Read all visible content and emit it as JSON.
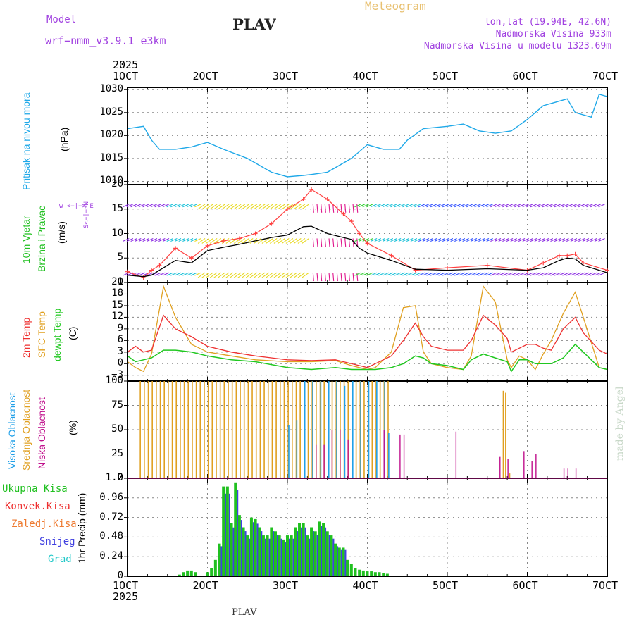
{
  "header": {
    "model_label": "Model",
    "model_name": "wrf−nmm_v3.9.1  e3km",
    "station": "PLAV",
    "product": "Meteogram",
    "lonlat": "lon,lat (19.94E, 42.6N)",
    "elevation": "Nadmorska Visina 933m",
    "model_elevation": "Nadmorska Visina u modelu 1323.69m",
    "watermark": "made by Angel",
    "footer_station": "PLAV"
  },
  "colors": {
    "pressure": "#1ea8e8",
    "wind_violet": "#8a2be2",
    "wind_purple": "#a020c0",
    "wind_blue": "#3050ff",
    "wind_cyan": "#18c0d8",
    "wind_green": "#30d030",
    "wind_yellow": "#e8d820",
    "wind_magenta": "#e0148c",
    "gust": "#ff4040",
    "speed": "#000000",
    "t2m": "#ee3030",
    "sfc": "#e0a020",
    "dewpt": "#20c820",
    "cloud_high": "#20a0e8",
    "cloud_mid": "#e0a020",
    "cloud_low": "#c0108c",
    "precip_total": "#20c020",
    "precip_conv": "#ee3030",
    "precip_freezing": "#ee7a30",
    "precip_snow": "#4040e0",
    "precip_hail": "#20c8c8"
  },
  "chart_data": [
    {
      "type": "line",
      "id": "pressure",
      "title": "Pritisak na nivou mora",
      "ylabel": "(hPa)",
      "ylim": [
        1009.3,
        1030.5
      ],
      "yticks": [
        "1010",
        "1015",
        "1020",
        "1025",
        "1030"
      ],
      "x_range_days": [
        1,
        7
      ],
      "x": [
        1.0,
        1.2,
        1.3,
        1.4,
        1.5,
        1.6,
        1.8,
        2.0,
        2.2,
        2.5,
        2.8,
        3.0,
        3.2,
        3.3,
        3.5,
        3.8,
        4.0,
        4.2,
        4.4,
        4.5,
        4.7,
        5.0,
        5.2,
        5.4,
        5.6,
        5.8,
        6.0,
        6.2,
        6.3,
        6.5,
        6.6,
        6.8,
        6.9,
        7.0
      ],
      "series": [
        {
          "name": "MSLP",
          "values": [
            1021.5,
            1022,
            1019,
            1017,
            1017,
            1017,
            1017.5,
            1018.5,
            1017,
            1015,
            1012,
            1011,
            1011.3,
            1011.5,
            1012,
            1015,
            1018,
            1017,
            1017,
            1019,
            1021.5,
            1022,
            1022.5,
            1021,
            1020.5,
            1021,
            1023.5,
            1026.5,
            1027,
            1028,
            1025,
            1024,
            1029,
            1028.5
          ]
        }
      ]
    },
    {
      "type": "line",
      "id": "wind",
      "title": "10m Vjetar",
      "subtitle": "Brzina i Pravac",
      "ylabel": "(m/s)",
      "compass": "w <−|−> E",
      "compass_ns": "S<−|−>N",
      "ylim": [
        0,
        20
      ],
      "yticks": [
        "0",
        "5",
        "10",
        "15",
        "20"
      ],
      "x": [
        1.0,
        1.2,
        1.3,
        1.4,
        1.6,
        1.8,
        2.0,
        2.2,
        2.4,
        2.6,
        2.8,
        3.0,
        3.2,
        3.3,
        3.5,
        3.7,
        3.8,
        3.9,
        4.0,
        4.3,
        4.6,
        5.0,
        5.5,
        6.0,
        6.2,
        6.4,
        6.5,
        6.6,
        6.7,
        7.0
      ],
      "series": [
        {
          "name": "Brzina",
          "values": [
            1.5,
            1.2,
            1.5,
            2.5,
            4.5,
            4,
            6.5,
            7.2,
            7.8,
            8.5,
            9.2,
            9.7,
            11.4,
            11.5,
            10,
            9.2,
            8.8,
            7,
            6,
            4.5,
            2.7,
            2.5,
            2.8,
            2.5,
            3,
            4.5,
            5,
            4.8,
            3.5,
            2
          ]
        },
        {
          "name": "Udari",
          "values": [
            2.2,
            1,
            2.5,
            3.5,
            7,
            5,
            7.5,
            8.5,
            9,
            10,
            12,
            15,
            17,
            19,
            17,
            14,
            12.5,
            10,
            8,
            5.5,
            2.5,
            3,
            3.5,
            2.5,
            4,
            5.5,
            5.5,
            5.8,
            4,
            2.5
          ]
        }
      ]
    },
    {
      "type": "line",
      "id": "temperature",
      "title": "2m Temp",
      "subtitle": "SFC Temp",
      "subtitle2": "dewpt Temp",
      "ylabel": "(C)",
      "ylim": [
        -4.5,
        21
      ],
      "yticks": [
        "−3",
        "0",
        "3",
        "6",
        "9",
        "12",
        "15",
        "18",
        "21"
      ],
      "x": [
        1.0,
        1.1,
        1.2,
        1.3,
        1.45,
        1.6,
        1.8,
        2.0,
        2.3,
        2.6,
        3.0,
        3.3,
        3.6,
        3.8,
        3.9,
        4.0,
        4.1,
        4.3,
        4.45,
        4.6,
        4.7,
        4.8,
        5.0,
        5.2,
        5.3,
        5.45,
        5.6,
        5.75,
        5.8,
        5.9,
        6.0,
        6.1,
        6.2,
        6.3,
        6.45,
        6.6,
        6.7,
        6.9,
        7.0
      ],
      "series": [
        {
          "name": "2m Temp",
          "values": [
            3,
            4.5,
            3,
            3.5,
            12.5,
            9,
            7,
            4.5,
            3,
            2,
            1,
            0.8,
            1,
            0,
            -0.5,
            -1,
            0,
            2,
            6,
            10.5,
            7,
            4.5,
            3.5,
            3.5,
            6,
            12.5,
            10,
            6.5,
            3,
            4,
            5,
            5,
            4,
            3.5,
            9,
            12,
            8,
            3.5,
            2.5
          ]
        },
        {
          "name": "SFC Temp",
          "values": [
            0.5,
            -1,
            -2,
            2.5,
            20,
            12,
            5,
            3,
            2,
            1,
            0.5,
            0.5,
            0.8,
            -0.5,
            -1,
            -1.5,
            -1,
            3,
            14.5,
            15,
            3,
            0,
            -1,
            -1.5,
            2,
            20,
            16,
            1,
            -1,
            2,
            1,
            -1.5,
            2.5,
            6,
            13,
            18.5,
            12,
            -1,
            -1.5
          ]
        },
        {
          "name": "dewpt Temp",
          "values": [
            2,
            0.5,
            1,
            1.5,
            3.5,
            3.5,
            3,
            2,
            1,
            0.5,
            -1,
            -1.5,
            -1,
            -1.5,
            -1.5,
            -1.5,
            -1.5,
            -1,
            0,
            2,
            1.5,
            0,
            -0.5,
            -1.5,
            1,
            2.5,
            1.5,
            0.5,
            -2,
            1,
            1,
            0,
            0,
            0,
            1.5,
            5,
            3,
            -1,
            -1.5
          ]
        }
      ]
    },
    {
      "type": "bar",
      "id": "clouds",
      "title": "Visoka Oblacnost",
      "subtitle": "Srednja Oblacnost",
      "subtitle2": "Niska Oblacnost",
      "ylabel": "(%)",
      "ylim": [
        0,
        100
      ],
      "yticks": [
        "0",
        "25",
        "50",
        "75",
        "100"
      ],
      "series": [
        {
          "name": "Srednja",
          "x_start": 1.16,
          "x_end": 4.3,
          "step": 0.05,
          "value": 100
        },
        {
          "name": "Visoka",
          "x": [
            3.0,
            3.1,
            3.2,
            3.3,
            3.4,
            3.5,
            3.6,
            3.7,
            3.8,
            3.9,
            4.0,
            4.1,
            4.2,
            4.25
          ],
          "values": [
            55,
            60,
            100,
            100,
            100,
            100,
            100,
            95,
            100,
            100,
            100,
            100,
            100,
            47
          ]
        },
        {
          "name": "Niska",
          "x": [
            3.35,
            3.45,
            3.55,
            3.65,
            3.75,
            4.2,
            4.4,
            4.45,
            5.1,
            5.65,
            5.75,
            5.95,
            6.05,
            6.1,
            6.45,
            6.5,
            6.6
          ],
          "values": [
            35,
            35,
            50,
            50,
            40,
            50,
            45,
            45,
            48,
            22,
            20,
            28,
            18,
            25,
            10,
            10,
            10
          ]
        },
        {
          "name": "Srednja-peak",
          "x": [
            5.7,
            5.73,
            5.78
          ],
          "values": [
            90,
            88,
            5
          ]
        }
      ]
    },
    {
      "type": "bar",
      "id": "precip",
      "title": "1hr Precip (mm)",
      "legend": [
        "Ukupna Kisa",
        "Konvek.Kisa",
        "Zaledj.Kisa",
        "Snijeg",
        "Grad"
      ],
      "ylabel": "1hr Precip (mm)",
      "ylim": [
        0,
        1.2
      ],
      "yticks": [
        "0",
        "0.24",
        "0.48",
        "0.72",
        "0.96",
        "1.2"
      ],
      "x": [
        1.65,
        1.7,
        1.75,
        1.8,
        1.85,
        2.0,
        2.05,
        2.1,
        2.15,
        2.2,
        2.25,
        2.3,
        2.35,
        2.4,
        2.45,
        2.5,
        2.55,
        2.6,
        2.65,
        2.7,
        2.75,
        2.8,
        2.85,
        2.9,
        2.95,
        3.0,
        3.05,
        3.1,
        3.15,
        3.2,
        3.25,
        3.3,
        3.35,
        3.4,
        3.45,
        3.5,
        3.55,
        3.6,
        3.65,
        3.7,
        3.75,
        3.8,
        3.85,
        3.9,
        3.95,
        4.0,
        4.05,
        4.1,
        4.15,
        4.2,
        4.25
      ],
      "series": [
        {
          "name": "Ukupna Kisa",
          "values": [
            0.02,
            0.05,
            0.07,
            0.07,
            0.05,
            0.05,
            0.1,
            0.2,
            0.4,
            1.1,
            1.1,
            0.65,
            1.15,
            0.75,
            0.6,
            0.5,
            0.72,
            0.7,
            0.6,
            0.5,
            0.5,
            0.6,
            0.55,
            0.5,
            0.45,
            0.5,
            0.5,
            0.6,
            0.65,
            0.65,
            0.5,
            0.6,
            0.55,
            0.67,
            0.65,
            0.55,
            0.5,
            0.4,
            0.35,
            0.35,
            0.2,
            0.15,
            0.1,
            0.08,
            0.07,
            0.06,
            0.06,
            0.05,
            0.05,
            0.04,
            0.03
          ]
        }
      ]
    }
  ],
  "time_axis": {
    "year": "2025",
    "labels": [
      "1OCT",
      "2OCT",
      "3OCT",
      "4OCT",
      "5OCT",
      "6OCT",
      "7OCT"
    ]
  }
}
